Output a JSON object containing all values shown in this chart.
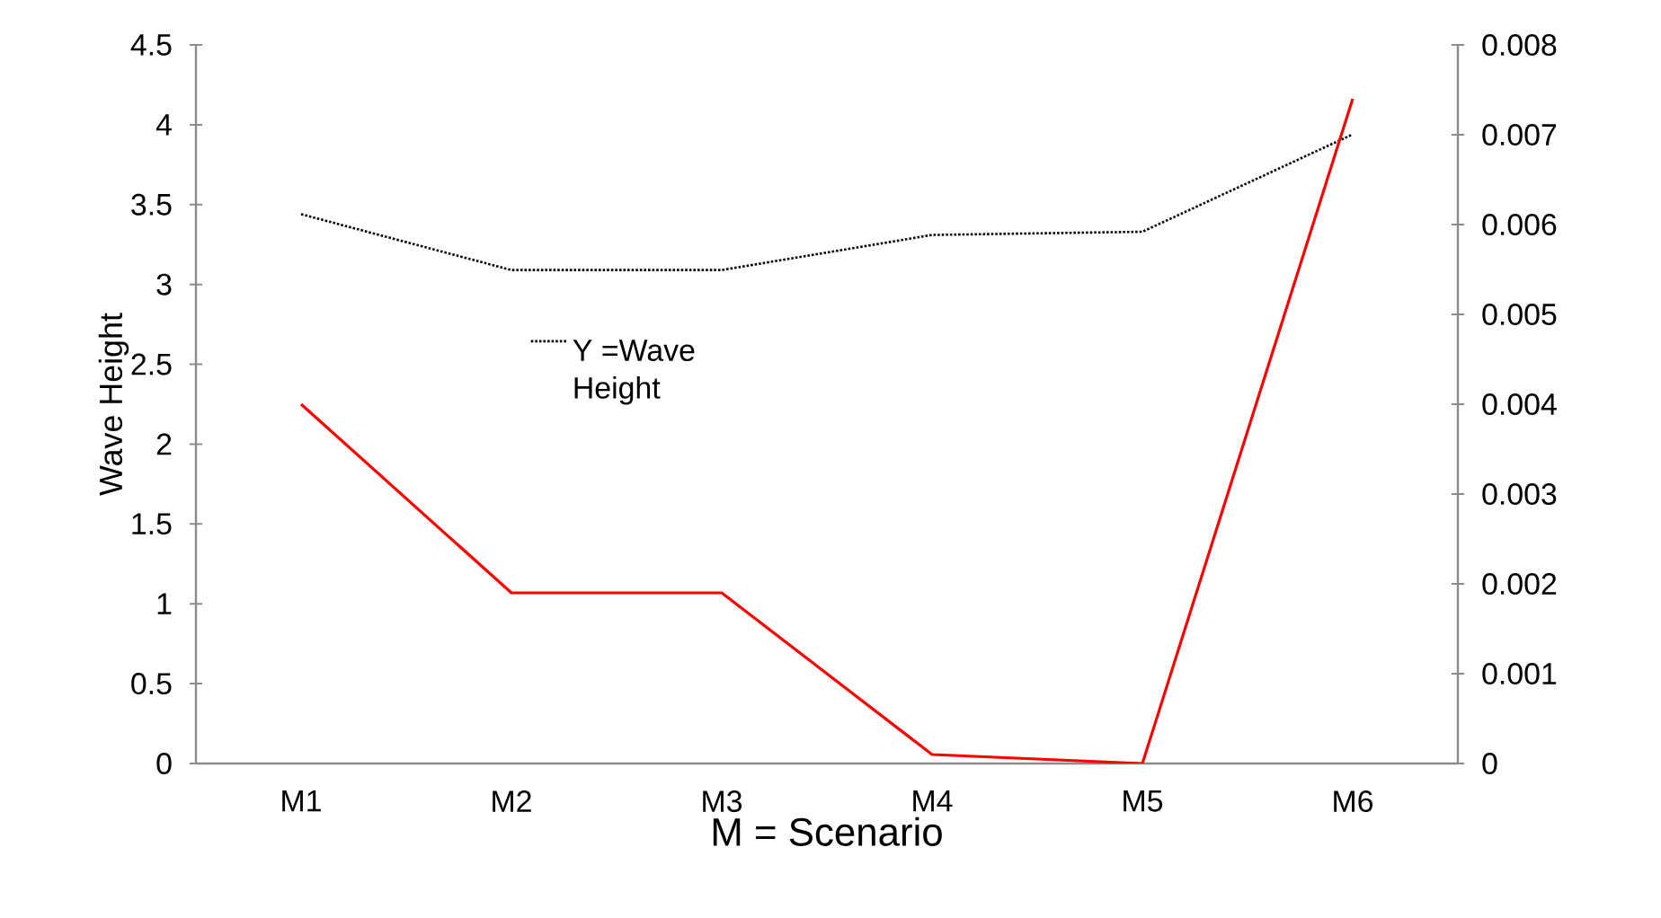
{
  "chart_data": {
    "type": "line",
    "xlabel": "M = Scenario",
    "ylabel": "Wave Height",
    "categories": [
      "M1",
      "M2",
      "M3",
      "M4",
      "M5",
      "M6"
    ],
    "series": [
      {
        "name": "Y =Wave Height",
        "color": "#000000",
        "line_style": "dotted",
        "values": [
          3.44,
          3.09,
          3.09,
          3.31,
          3.33,
          3.94
        ]
      },
      {
        "color": "#ff0000",
        "line_style": "solid",
        "axis": "y2",
        "values": [
          0.004,
          0.0019,
          0.0019,
          0.0001,
          0.0,
          0.0074
        ]
      }
    ],
    "ylim": [
      0,
      4.5
    ],
    "yticks": [
      0,
      0.5,
      1,
      1.5,
      2,
      2.5,
      3,
      3.5,
      4,
      4.5
    ],
    "y2lim": [
      0,
      0.008
    ],
    "y2ticks": [
      0,
      0.001,
      0.002,
      0.003,
      0.004,
      0.005,
      0.006,
      0.007,
      0.008
    ],
    "legend": "left",
    "grid": false,
    "marker": "none"
  }
}
